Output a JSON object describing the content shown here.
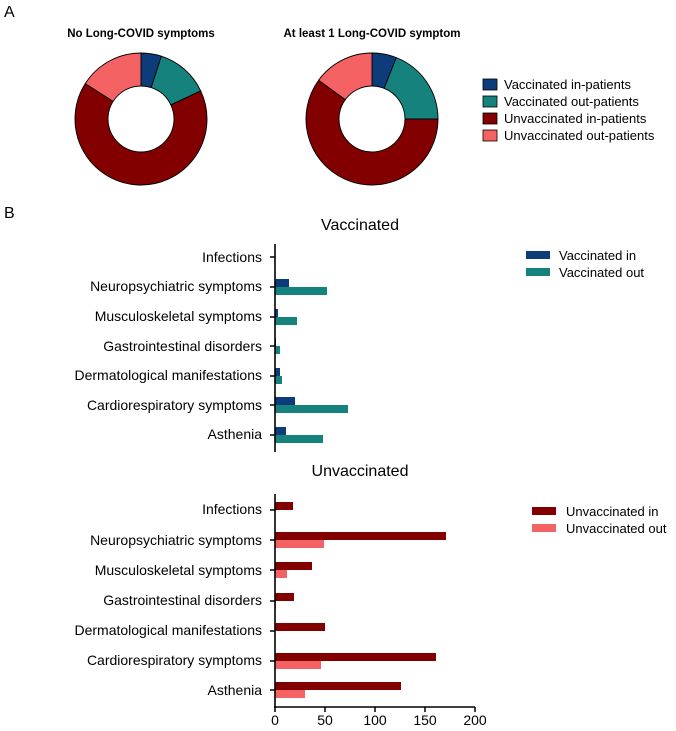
{
  "panels": {
    "a": "A",
    "b": "B"
  },
  "colors": {
    "vaccinated_in": "#0d3c7a",
    "vaccinated_out": "#16827d",
    "unvaccinated_in": "#820000",
    "unvaccinated_out": "#f46264"
  },
  "chart_data": [
    {
      "type": "pie",
      "title": "No Long-COVID symptoms",
      "style": "donut",
      "labels": [
        "Vaccinated in-patients",
        "Vaccinated out-patients",
        "Unvaccinated in-patients",
        "Unvaccinated out-patients"
      ],
      "values": [
        5,
        13,
        66,
        16
      ]
    },
    {
      "type": "pie",
      "title": "At least 1 Long-COVID symptom",
      "style": "donut",
      "labels": [
        "Vaccinated in-patients",
        "Vaccinated out-patients",
        "Unvaccinated in-patients",
        "Unvaccinated out-patients"
      ],
      "values": [
        6,
        19,
        60,
        15
      ]
    },
    {
      "type": "bar",
      "orientation": "horizontal",
      "title": "Vaccinated",
      "categories": [
        "Infections",
        "Neuropsychiatric symptoms",
        "Musculoskeletal symptoms",
        "Gastrointestinal disorders",
        "Dermatological manifestations",
        "Cardiorespiratory symptoms",
        "Asthenia"
      ],
      "series": [
        {
          "name": "Vaccinated in",
          "values": [
            0,
            14,
            3,
            1,
            5,
            20,
            11
          ]
        },
        {
          "name": "Vaccinated out",
          "values": [
            0,
            52,
            22,
            5,
            7,
            73,
            48
          ]
        }
      ],
      "xlim": [
        0,
        200
      ]
    },
    {
      "type": "bar",
      "orientation": "horizontal",
      "title": "Unvaccinated",
      "categories": [
        "Infections",
        "Neuropsychiatric symptoms",
        "Musculoskeletal symptoms",
        "Gastrointestinal disorders",
        "Dermatological manifestations",
        "Cardiorespiratory symptoms",
        "Asthenia"
      ],
      "series": [
        {
          "name": "Unvaccinated in",
          "values": [
            18,
            171,
            37,
            19,
            50,
            161,
            126
          ]
        },
        {
          "name": "Unvaccinated out",
          "values": [
            0,
            49,
            12,
            1,
            0,
            46,
            30
          ]
        }
      ],
      "xlim": [
        0,
        200
      ],
      "xticks": [
        0,
        50,
        100,
        150,
        200
      ]
    }
  ]
}
